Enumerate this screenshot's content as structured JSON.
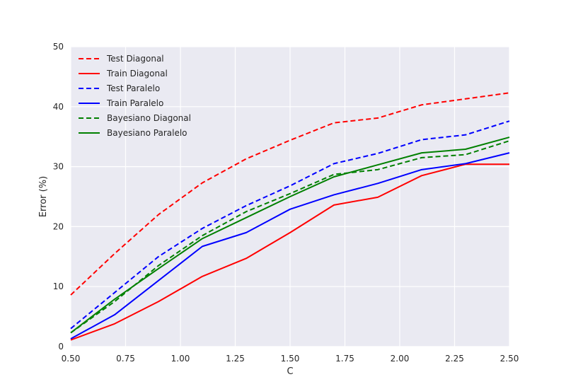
{
  "chart_data": {
    "type": "line",
    "title": "",
    "xlabel": "C",
    "ylabel": "Error (%)",
    "xlim": [
      0.5,
      2.5
    ],
    "ylim": [
      0,
      50
    ],
    "grid": true,
    "legend_position": "top-left",
    "x": [
      0.5,
      0.7,
      0.9,
      1.1,
      1.3,
      1.5,
      1.7,
      1.9,
      2.1,
      2.3,
      2.5
    ],
    "x_ticks": [
      "0.50",
      "0.75",
      "1.00",
      "1.25",
      "1.50",
      "1.75",
      "2.00",
      "2.25",
      "2.50"
    ],
    "y_ticks": [
      "0",
      "10",
      "20",
      "30",
      "40",
      "50"
    ],
    "series": [
      {
        "name": "Test Diagonal",
        "color": "#ff0000",
        "dashed": true,
        "values": [
          8.6,
          15.5,
          22.0,
          27.3,
          31.3,
          34.4,
          37.3,
          38.1,
          40.3,
          41.3,
          42.3
        ]
      },
      {
        "name": "Train Diagonal",
        "color": "#ff0000",
        "dashed": false,
        "values": [
          1.1,
          3.8,
          7.5,
          11.7,
          14.7,
          19.0,
          23.6,
          24.9,
          28.5,
          30.4,
          30.4
        ]
      },
      {
        "name": "Test Paralelo",
        "color": "#0000ff",
        "dashed": true,
        "values": [
          3.0,
          9.0,
          15.0,
          19.7,
          23.5,
          26.8,
          30.5,
          32.2,
          34.5,
          35.3,
          37.6
        ]
      },
      {
        "name": "Train Paralelo",
        "color": "#0000ff",
        "dashed": false,
        "values": [
          1.3,
          5.3,
          11.0,
          16.7,
          19.0,
          22.9,
          25.3,
          27.2,
          29.5,
          30.5,
          32.3
        ]
      },
      {
        "name": "Bayesiano Diagonal",
        "color": "#008000",
        "dashed": true,
        "values": [
          2.3,
          7.5,
          13.5,
          18.5,
          22.5,
          25.5,
          28.7,
          29.5,
          31.5,
          32.0,
          34.3
        ]
      },
      {
        "name": "Bayesiano Paralelo",
        "color": "#008000",
        "dashed": false,
        "values": [
          2.3,
          7.9,
          13.0,
          18.0,
          21.5,
          25.0,
          28.3,
          30.3,
          32.3,
          32.9,
          34.9
        ]
      }
    ]
  }
}
